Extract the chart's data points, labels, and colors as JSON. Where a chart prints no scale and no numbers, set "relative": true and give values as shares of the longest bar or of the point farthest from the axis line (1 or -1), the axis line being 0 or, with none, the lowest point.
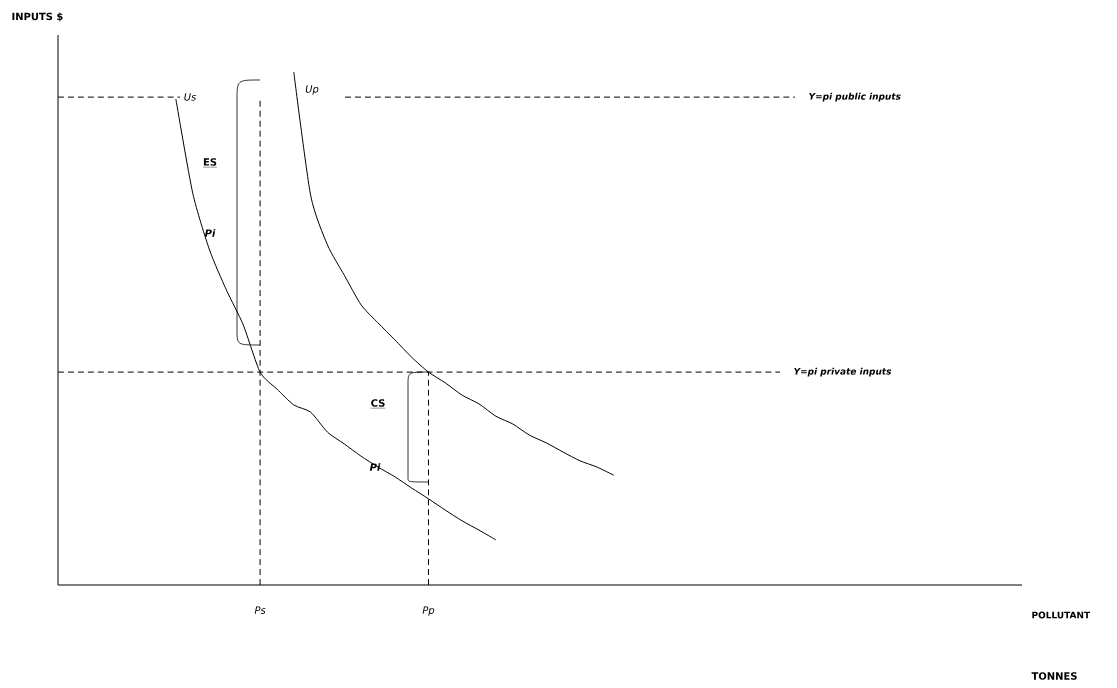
{
  "chart_data": {
    "type": "line",
    "relative": true,
    "xlabel": "POLLUTANT",
    "categories": [
      null,
      null,
      null,
      null,
      null,
      null,
      null,
      null,
      null,
      null,
      null,
      null,
      "Ps",
      null,
      null,
      null,
      null,
      null,
      null,
      null,
      null,
      null,
      "Pp",
      null,
      null,
      null,
      null,
      null,
      null,
      null,
      null,
      null,
      null,
      null,
      null,
      null,
      null,
      null,
      null,
      null,
      null,
      null,
      null,
      null,
      null,
      null,
      null,
      null,
      null,
      null,
      null,
      null,
      null,
      null,
      null,
      null,
      null,
      null
    ],
    "series": [
      {
        "name": "Us",
        "color": "#000000",
        "values": [
          null,
          null,
          null,
          null,
          null,
          null,
          null,
          0.947,
          0.764,
          0.653,
          0.575,
          0.507,
          0.415,
          0.382,
          0.351,
          0.337,
          0.298,
          0.275,
          0.251,
          0.23,
          0.211,
          0.189,
          0.168,
          0.146,
          0.125,
          0.107,
          0.088,
          null,
          null,
          null,
          null,
          null,
          null,
          null,
          null,
          null,
          null,
          null,
          null,
          null,
          null,
          null,
          null,
          null,
          null,
          null,
          null,
          null,
          null,
          null,
          null,
          null,
          null,
          null,
          null,
          null,
          null,
          null
        ]
      },
      {
        "name": "Up",
        "color": "#000000",
        "values": [
          null,
          null,
          null,
          null,
          null,
          null,
          null,
          null,
          null,
          null,
          null,
          null,
          null,
          null,
          1.0,
          0.76,
          0.663,
          0.604,
          0.546,
          0.511,
          0.478,
          0.444,
          0.415,
          0.394,
          0.37,
          0.353,
          0.329,
          0.314,
          0.292,
          0.277,
          0.259,
          0.242,
          0.23,
          0.214,
          null,
          null,
          null,
          null,
          null,
          null,
          null,
          null,
          null,
          null,
          null,
          null,
          null,
          null,
          null,
          null,
          null,
          null,
          null,
          null,
          null,
          null,
          null,
          null
        ]
      }
    ],
    "ref_lines": [
      {
        "axis": "y",
        "value": 0.951,
        "label": "Y=pi public inputs",
        "line_style": "dashed"
      },
      {
        "axis": "y",
        "value": 0.415,
        "label": "Y=pi private inputs",
        "line_style": "dashed"
      },
      {
        "axis": "x",
        "value": "Ps",
        "line_style": "dashed"
      },
      {
        "axis": "x",
        "value": "Pp",
        "line_style": "dashed"
      }
    ],
    "annotations": [
      "INPUTS $",
      "ES",
      "Pi",
      "CS",
      "Pi",
      "TONNES"
    ],
    "marker": "none",
    "line_style": "solid",
    "grid": false
  }
}
